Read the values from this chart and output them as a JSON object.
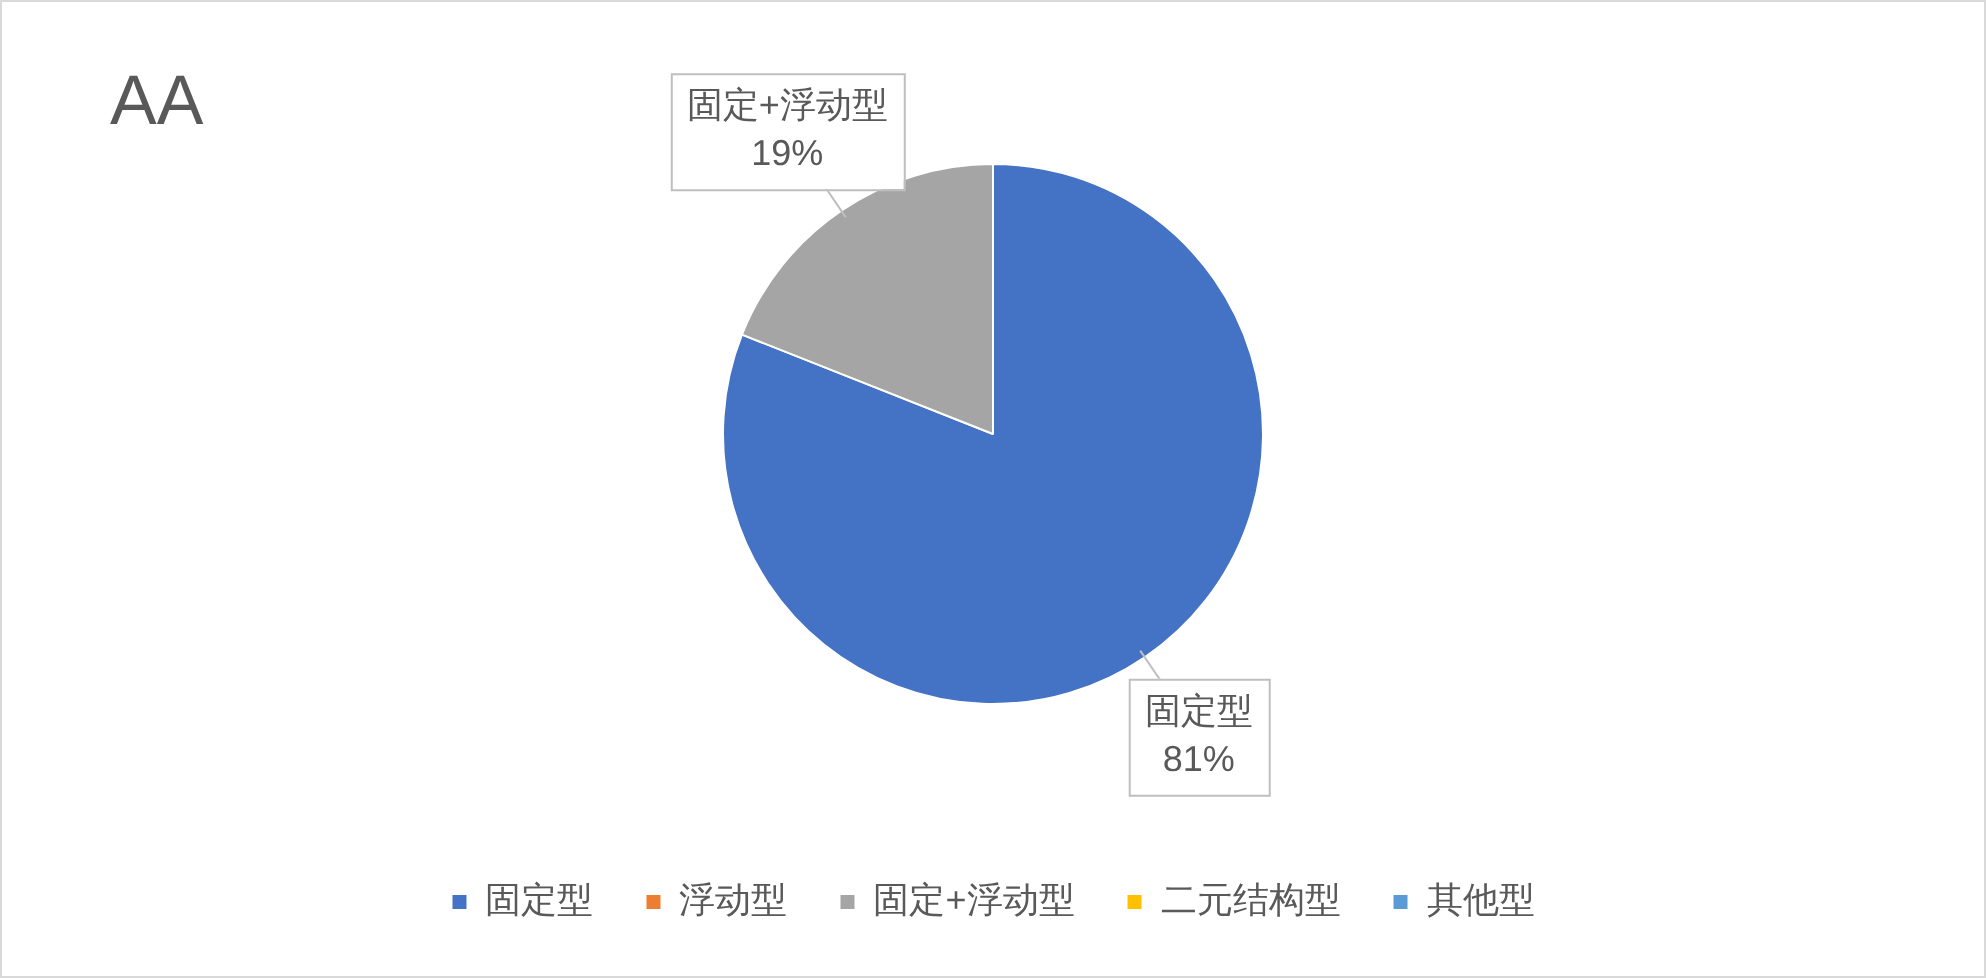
{
  "chart_data": {
    "type": "pie",
    "title": "AA",
    "categories": [
      "固定型",
      "浮动型",
      "固定+浮动型",
      "二元结构型",
      "其他型"
    ],
    "values": [
      81,
      0,
      19,
      0,
      0
    ],
    "colors": [
      "#4472c4",
      "#ed7d31",
      "#a5a5a5",
      "#ffc000",
      "#5b9bd5"
    ],
    "value_labels": [
      "81%",
      null,
      "19%",
      null,
      null
    ],
    "legend": "bottom"
  }
}
